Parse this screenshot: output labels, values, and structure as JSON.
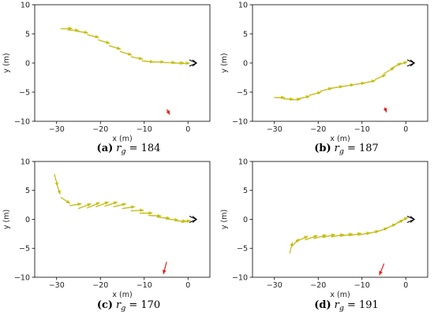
{
  "chart_data": [
    {
      "type": "quiver",
      "xlabel": "x (m)",
      "ylabel": "y (m)",
      "xlim": [
        -35,
        5
      ],
      "ylim": [
        -10,
        10
      ],
      "xticks": [
        -30,
        -20,
        -10,
        0
      ],
      "yticks": [
        -10,
        -5,
        0,
        5,
        10
      ],
      "caption": {
        "label": "(a)",
        "var": "r",
        "sub": "g",
        "value": "= 184"
      },
      "arrow_color": "#c9c20a",
      "goal": {
        "x": -4.8,
        "y": -8.0,
        "dx": 0.6,
        "dy": -0.8,
        "color": "#e0201b"
      },
      "end_marker": {
        "x": 0.5,
        "y": 0.0
      },
      "arrows": [
        {
          "x": -29.0,
          "y": 5.9,
          "dx": 2.5,
          "dy": 0.05
        },
        {
          "x": -27.5,
          "y": 5.7,
          "dx": 2.5,
          "dy": -0.1
        },
        {
          "x": -25.5,
          "y": 5.5,
          "dx": 2.6,
          "dy": -0.3
        },
        {
          "x": -23.0,
          "y": 4.9,
          "dx": 2.6,
          "dy": -0.5
        },
        {
          "x": -20.5,
          "y": 4.0,
          "dx": 2.6,
          "dy": -0.6
        },
        {
          "x": -18.0,
          "y": 3.0,
          "dx": 2.6,
          "dy": -0.6
        },
        {
          "x": -15.5,
          "y": 2.0,
          "dx": 2.6,
          "dy": -0.6
        },
        {
          "x": -13.0,
          "y": 1.1,
          "dx": 2.6,
          "dy": -0.4
        },
        {
          "x": -10.5,
          "y": 0.4,
          "dx": 2.6,
          "dy": -0.2
        },
        {
          "x": -8.0,
          "y": 0.2,
          "dx": 2.5,
          "dy": 0.0
        },
        {
          "x": -5.5,
          "y": 0.1,
          "dx": 2.5,
          "dy": 0.0
        },
        {
          "x": -3.5,
          "y": 0.0,
          "dx": 2.5,
          "dy": 0.05
        },
        {
          "x": -2.0,
          "y": -0.1,
          "dx": 2.3,
          "dy": 0.1
        }
      ]
    },
    {
      "type": "quiver",
      "xlabel": "x (m)",
      "ylabel": "y (m)",
      "xlim": [
        -35,
        5
      ],
      "ylim": [
        -10,
        10
      ],
      "xticks": [
        -30,
        -20,
        -10,
        0
      ],
      "yticks": [
        -10,
        -5,
        0,
        5,
        10
      ],
      "caption": {
        "label": "(b)",
        "var": "r",
        "sub": "g",
        "value": "= 187"
      },
      "arrow_color": "#c9c20a",
      "goal": {
        "x": -4.8,
        "y": -7.7,
        "dx": 0.4,
        "dy": -0.7,
        "color": "#e0201b"
      },
      "end_marker": {
        "x": 0.5,
        "y": 0.0
      },
      "arrows": [
        {
          "x": -30.0,
          "y": -5.9,
          "dx": 2.3,
          "dy": 0.0
        },
        {
          "x": -28.0,
          "y": -6.1,
          "dx": 2.3,
          "dy": -0.1
        },
        {
          "x": -26.5,
          "y": -6.3,
          "dx": 2.4,
          "dy": 0.1
        },
        {
          "x": -24.5,
          "y": -6.1,
          "dx": 2.5,
          "dy": 0.4
        },
        {
          "x": -22.0,
          "y": -5.5,
          "dx": 2.6,
          "dy": 0.5
        },
        {
          "x": -19.5,
          "y": -4.8,
          "dx": 2.6,
          "dy": 0.5
        },
        {
          "x": -17.0,
          "y": -4.3,
          "dx": 2.6,
          "dy": 0.3
        },
        {
          "x": -14.5,
          "y": -4.0,
          "dx": 2.6,
          "dy": 0.3
        },
        {
          "x": -12.0,
          "y": -3.7,
          "dx": 2.6,
          "dy": 0.3
        },
        {
          "x": -9.5,
          "y": -3.4,
          "dx": 2.5,
          "dy": 0.4
        },
        {
          "x": -7.0,
          "y": -2.8,
          "dx": 2.4,
          "dy": 0.8
        },
        {
          "x": -5.0,
          "y": -1.8,
          "dx": 2.3,
          "dy": 1.0
        },
        {
          "x": -3.3,
          "y": -0.9,
          "dx": 2.2,
          "dy": 0.9
        },
        {
          "x": -1.8,
          "y": -0.3,
          "dx": 2.1,
          "dy": 0.5
        }
      ]
    },
    {
      "type": "quiver",
      "xlabel": "x (m)",
      "ylabel": "y (m)",
      "xlim": [
        -35,
        5
      ],
      "ylim": [
        -10,
        10
      ],
      "xticks": [
        -30,
        -20,
        -10,
        0
      ],
      "yticks": [
        -10,
        -5,
        0,
        5,
        10
      ],
      "caption": {
        "label": "(c)",
        "var": "r",
        "sub": "g",
        "value": "= 170"
      },
      "arrow_color": "#c9c20a",
      "goal": {
        "x": -4.9,
        "y": -7.4,
        "dx": -0.7,
        "dy": -2.0,
        "color": "#e0201b"
      },
      "end_marker": {
        "x": 0.5,
        "y": 0.0
      },
      "arrows": [
        {
          "x": -30.5,
          "y": 7.8,
          "dx": 0.7,
          "dy": -2.0
        },
        {
          "x": -30.0,
          "y": 6.2,
          "dx": 0.8,
          "dy": -1.8
        },
        {
          "x": -29.0,
          "y": 3.8,
          "dx": 2.0,
          "dy": -1.0
        },
        {
          "x": -27.0,
          "y": 2.4,
          "dx": 2.6,
          "dy": 0.3
        },
        {
          "x": -25.0,
          "y": 1.9,
          "dx": 2.8,
          "dy": 0.8
        },
        {
          "x": -23.0,
          "y": 2.0,
          "dx": 2.8,
          "dy": 0.9
        },
        {
          "x": -21.0,
          "y": 2.2,
          "dx": 2.8,
          "dy": 0.8
        },
        {
          "x": -19.0,
          "y": 2.3,
          "dx": 2.8,
          "dy": 0.7
        },
        {
          "x": -17.0,
          "y": 2.2,
          "dx": 2.8,
          "dy": 0.5
        },
        {
          "x": -15.0,
          "y": 1.9,
          "dx": 2.8,
          "dy": 0.3
        },
        {
          "x": -13.0,
          "y": 1.5,
          "dx": 2.8,
          "dy": 0.1
        },
        {
          "x": -11.0,
          "y": 1.1,
          "dx": 2.8,
          "dy": 0.0
        },
        {
          "x": -9.0,
          "y": 0.7,
          "dx": 2.8,
          "dy": -0.1
        },
        {
          "x": -7.0,
          "y": 0.4,
          "dx": 2.8,
          "dy": -0.2
        },
        {
          "x": -5.0,
          "y": 0.1,
          "dx": 2.7,
          "dy": -0.2
        },
        {
          "x": -3.0,
          "y": -0.2,
          "dx": 2.5,
          "dy": -0.1
        },
        {
          "x": -1.5,
          "y": -0.5,
          "dx": 2.0,
          "dy": 0.3
        }
      ]
    },
    {
      "type": "quiver",
      "xlabel": "x (m)",
      "ylabel": "y (m)",
      "xlim": [
        -35,
        5
      ],
      "ylim": [
        -10,
        10
      ],
      "xticks": [
        -30,
        -20,
        -10,
        0
      ],
      "yticks": [
        -10,
        -5,
        0,
        5,
        10
      ],
      "caption": {
        "label": "(d)",
        "var": "r",
        "sub": "g",
        "value": "= 191"
      },
      "arrow_color": "#c9c20a",
      "goal": {
        "x": -5.0,
        "y": -7.7,
        "dx": -1.0,
        "dy": -1.9,
        "color": "#e0201b"
      },
      "end_marker": {
        "x": 0.5,
        "y": 0.0
      },
      "arrows": [
        {
          "x": -26.5,
          "y": -5.8,
          "dx": 0.6,
          "dy": 1.8
        },
        {
          "x": -26.0,
          "y": -4.6,
          "dx": 1.6,
          "dy": 1.2
        },
        {
          "x": -25.0,
          "y": -3.8,
          "dx": 2.6,
          "dy": 0.9
        },
        {
          "x": -23.0,
          "y": -3.5,
          "dx": 2.8,
          "dy": 0.7
        },
        {
          "x": -21.0,
          "y": -3.3,
          "dx": 2.8,
          "dy": 0.6
        },
        {
          "x": -19.0,
          "y": -3.1,
          "dx": 2.8,
          "dy": 0.5
        },
        {
          "x": -17.0,
          "y": -3.0,
          "dx": 2.8,
          "dy": 0.4
        },
        {
          "x": -15.0,
          "y": -2.9,
          "dx": 2.8,
          "dy": 0.4
        },
        {
          "x": -13.0,
          "y": -2.8,
          "dx": 2.8,
          "dy": 0.4
        },
        {
          "x": -11.0,
          "y": -2.7,
          "dx": 2.8,
          "dy": 0.4
        },
        {
          "x": -9.0,
          "y": -2.5,
          "dx": 2.8,
          "dy": 0.5
        },
        {
          "x": -7.0,
          "y": -2.2,
          "dx": 2.8,
          "dy": 0.7
        },
        {
          "x": -5.0,
          "y": -1.7,
          "dx": 2.7,
          "dy": 0.9
        },
        {
          "x": -3.2,
          "y": -1.1,
          "dx": 2.6,
          "dy": 1.0
        },
        {
          "x": -1.8,
          "y": -0.5,
          "dx": 2.2,
          "dy": 0.8
        }
      ]
    }
  ]
}
